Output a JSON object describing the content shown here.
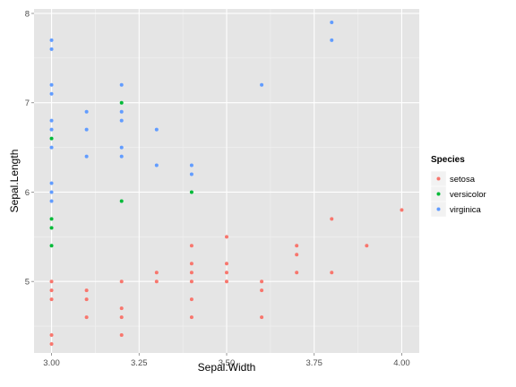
{
  "chart_data": {
    "type": "scatter",
    "xlabel": "Sepal.Width",
    "ylabel": "Sepal.Length",
    "xlim": [
      2.95,
      4.05
    ],
    "ylim": [
      4.2,
      8.05
    ],
    "x_ticks": [
      3.0,
      3.25,
      3.5,
      3.75,
      4.0
    ],
    "x_tick_labels": [
      "3.00",
      "3.25",
      "3.50",
      "3.75",
      "4.00"
    ],
    "y_ticks": [
      5,
      6,
      7,
      8
    ],
    "y_tick_labels": [
      "5",
      "6",
      "7",
      "8"
    ],
    "grid": true,
    "legend": {
      "title": "Species",
      "position": "right"
    },
    "series": [
      {
        "name": "setosa",
        "color": "#F8766D",
        "points": [
          [
            3.0,
            4.3
          ],
          [
            3.0,
            4.4
          ],
          [
            3.0,
            4.8
          ],
          [
            3.0,
            4.9
          ],
          [
            3.0,
            5.0
          ],
          [
            3.1,
            4.6
          ],
          [
            3.1,
            4.8
          ],
          [
            3.1,
            4.9
          ],
          [
            3.2,
            4.4
          ],
          [
            3.2,
            4.6
          ],
          [
            3.2,
            4.7
          ],
          [
            3.2,
            5.0
          ],
          [
            3.3,
            5.0
          ],
          [
            3.3,
            5.1
          ],
          [
            3.4,
            4.6
          ],
          [
            3.4,
            4.8
          ],
          [
            3.4,
            5.0
          ],
          [
            3.4,
            5.1
          ],
          [
            3.4,
            5.2
          ],
          [
            3.4,
            5.4
          ],
          [
            3.5,
            5.0
          ],
          [
            3.5,
            5.1
          ],
          [
            3.5,
            5.2
          ],
          [
            3.5,
            5.5
          ],
          [
            3.6,
            4.6
          ],
          [
            3.6,
            4.9
          ],
          [
            3.6,
            5.0
          ],
          [
            3.7,
            5.1
          ],
          [
            3.7,
            5.3
          ],
          [
            3.7,
            5.4
          ],
          [
            3.8,
            5.1
          ],
          [
            3.8,
            5.7
          ],
          [
            3.9,
            5.4
          ],
          [
            4.0,
            5.8
          ]
        ]
      },
      {
        "name": "versicolor",
        "color": "#00BA38",
        "points": [
          [
            3.0,
            5.4
          ],
          [
            3.0,
            5.6
          ],
          [
            3.0,
            5.7
          ],
          [
            3.0,
            6.6
          ],
          [
            3.2,
            5.9
          ],
          [
            3.2,
            7.0
          ],
          [
            3.4,
            6.0
          ]
        ]
      },
      {
        "name": "virginica",
        "color": "#619CFF",
        "points": [
          [
            3.0,
            5.9
          ],
          [
            3.0,
            6.0
          ],
          [
            3.0,
            6.1
          ],
          [
            3.0,
            6.5
          ],
          [
            3.0,
            6.7
          ],
          [
            3.0,
            6.8
          ],
          [
            3.0,
            7.1
          ],
          [
            3.0,
            7.2
          ],
          [
            3.0,
            7.6
          ],
          [
            3.0,
            7.7
          ],
          [
            3.1,
            6.4
          ],
          [
            3.1,
            6.7
          ],
          [
            3.1,
            6.9
          ],
          [
            3.2,
            6.4
          ],
          [
            3.2,
            6.5
          ],
          [
            3.2,
            6.8
          ],
          [
            3.2,
            6.9
          ],
          [
            3.2,
            7.2
          ],
          [
            3.3,
            6.3
          ],
          [
            3.3,
            6.7
          ],
          [
            3.4,
            6.2
          ],
          [
            3.4,
            6.3
          ],
          [
            3.6,
            7.2
          ],
          [
            3.8,
            7.7
          ],
          [
            3.8,
            7.9
          ]
        ]
      }
    ],
    "panel_background": "#E5E5E5",
    "grid_color": "#FFFFFF"
  }
}
